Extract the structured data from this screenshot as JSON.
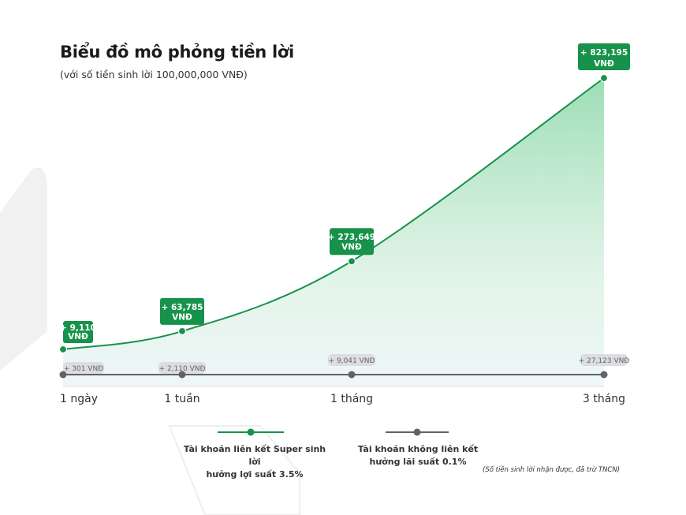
{
  "chart_data": {
    "type": "line",
    "title": "Biểu đồ mô phỏng tiền lời",
    "subtitle": "(với số tiền sinh lời 100,000,000 VNĐ)",
    "categories": [
      "1 ngày",
      "1 tuần",
      "1 tháng",
      "3 tháng"
    ],
    "series": [
      {
        "name": "Tài khoản liên kết Super sinh lời hưởng lợi suất 3.5%",
        "values": [
          9110,
          63785,
          273649,
          823195
        ],
        "labels": [
          "+ 9,110 VNĐ",
          "+ 63,785 VNĐ",
          "+ 273,649 VNĐ",
          "+ 823,195 VNĐ"
        ],
        "color": "#16924a",
        "area": true
      },
      {
        "name": "Tài khoản không liên kết hưởng lãi suất 0.1%",
        "values": [
          301,
          2110,
          9041,
          27123
        ],
        "labels": [
          "+ 301 VNĐ",
          "+ 2,110 VNĐ",
          "+ 9,041 VNĐ",
          "+ 27,123 VNĐ"
        ],
        "color": "#5f6368"
      }
    ],
    "legend": {
      "position": "bottom",
      "items": [
        {
          "line1": "Tài khoản liên kết Super sinh lời",
          "line2": "hưởng lợi suất 3.5%"
        },
        {
          "line1": "Tài khoản không liên kết",
          "line2": "hưởng lãi suất 0.1%"
        }
      ]
    },
    "note": "(Số tiền sinh lời nhận được, đã trừ TNCN)",
    "grid": false
  }
}
